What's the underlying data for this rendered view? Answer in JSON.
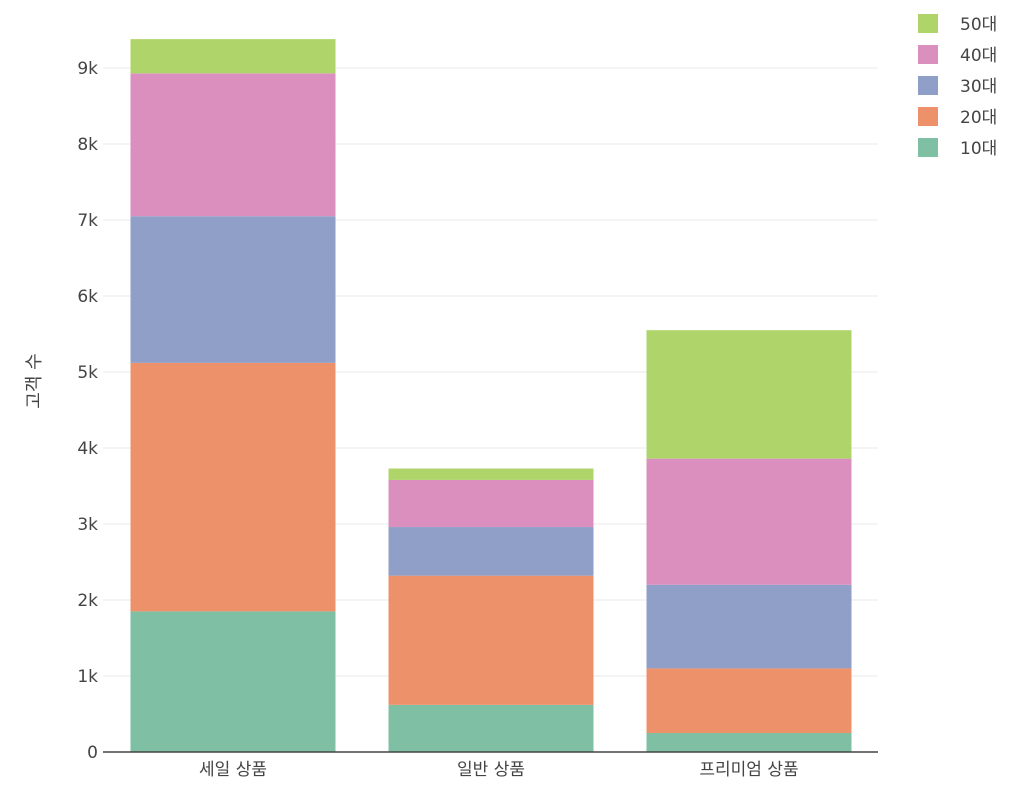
{
  "chart_data": {
    "type": "bar",
    "stacked": true,
    "categories": [
      "세일 상품",
      "일반 상품",
      "프리미엄 상품"
    ],
    "series": [
      {
        "name": "10대",
        "values": [
          1850,
          620,
          250
        ],
        "color": "#7fbfa4"
      },
      {
        "name": "20대",
        "values": [
          3270,
          1700,
          850
        ],
        "color": "#ed916b"
      },
      {
        "name": "30대",
        "values": [
          1930,
          640,
          1100
        ],
        "color": "#909fc8"
      },
      {
        "name": "40대",
        "values": [
          1880,
          620,
          1660
        ],
        "color": "#db8fbf"
      },
      {
        "name": "50대",
        "values": [
          450,
          150,
          1690
        ],
        "color": "#afd56a"
      }
    ],
    "ylabel": "고객 수",
    "xlabel": "",
    "ylim": [
      0,
      9500
    ],
    "yticks": [
      {
        "value": 0,
        "label": "0"
      },
      {
        "value": 1000,
        "label": "1k"
      },
      {
        "value": 2000,
        "label": "2k"
      },
      {
        "value": 3000,
        "label": "3k"
      },
      {
        "value": 4000,
        "label": "4k"
      },
      {
        "value": 5000,
        "label": "5k"
      },
      {
        "value": 6000,
        "label": "6k"
      },
      {
        "value": 7000,
        "label": "7k"
      },
      {
        "value": 8000,
        "label": "8k"
      },
      {
        "value": 9000,
        "label": "9k"
      }
    ],
    "grid": true,
    "legend_position": "top-right"
  }
}
